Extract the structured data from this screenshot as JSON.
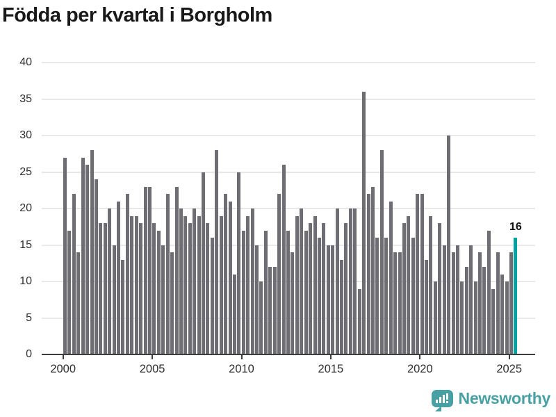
{
  "title": "Födda per kvartal i Borgholm",
  "annotation": {
    "last_value_label": "16"
  },
  "branding": {
    "logo_text": "Newsworthy"
  },
  "colors": {
    "bar": "#6e6d73",
    "highlight": "#00a2a2",
    "grid": "#e8e8e8",
    "axis": "#3d3d3d",
    "logo": "#47a0a4",
    "title_text": "#191919"
  },
  "chart_data": {
    "type": "bar",
    "title": "Födda per kvartal i Borgholm",
    "x_unit": "quarter",
    "frequency": "quarterly",
    "x_start": "2000 Q1",
    "x_end": "2025 Q2",
    "values": [
      27,
      17,
      22,
      14,
      27,
      26,
      28,
      24,
      18,
      18,
      20,
      15,
      21,
      13,
      22,
      19,
      19,
      18,
      23,
      23,
      18,
      17,
      15,
      22,
      14,
      23,
      20,
      19,
      18,
      20,
      19,
      25,
      18,
      16,
      28,
      19,
      22,
      21,
      11,
      25,
      17,
      19,
      20,
      15,
      10,
      17,
      12,
      12,
      22,
      26,
      17,
      14,
      19,
      20,
      17,
      18,
      19,
      16,
      18,
      15,
      15,
      20,
      13,
      18,
      20,
      20,
      9,
      36,
      22,
      23,
      16,
      28,
      16,
      21,
      14,
      14,
      18,
      19,
      16,
      22,
      22,
      13,
      19,
      10,
      18,
      15,
      30,
      14,
      15,
      10,
      12,
      15,
      10,
      14,
      12,
      17,
      9,
      14,
      11,
      10,
      14,
      16
    ],
    "highlight_last": true,
    "highlight_last_value": 16,
    "y_ticks": [
      0,
      5,
      10,
      15,
      20,
      25,
      30,
      35,
      40
    ],
    "x_tick_years": [
      2000,
      2005,
      2010,
      2015,
      2020,
      2025
    ],
    "ylim": [
      0,
      40
    ],
    "grid": true,
    "legend": false
  }
}
